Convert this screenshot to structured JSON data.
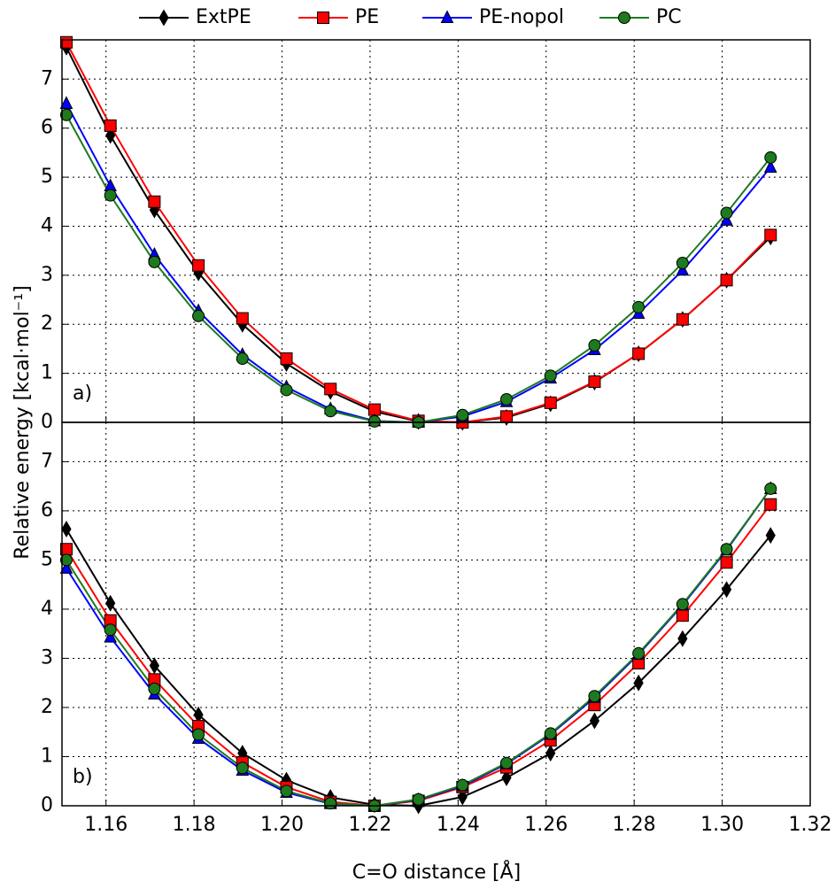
{
  "chart_data": [
    {
      "type": "line",
      "panel_label": "a)",
      "ylabel": "Relative energy [kcal·mol⁻¹]",
      "x": [
        1.151,
        1.161,
        1.171,
        1.181,
        1.191,
        1.201,
        1.211,
        1.221,
        1.231,
        1.241,
        1.251,
        1.261,
        1.271,
        1.281,
        1.291,
        1.301,
        1.311
      ],
      "xlim": [
        1.15,
        1.32
      ],
      "xticks": [
        1.16,
        1.18,
        1.2,
        1.22,
        1.24,
        1.26,
        1.28,
        1.3,
        1.32
      ],
      "ylim": [
        0,
        7.8
      ],
      "yticks": [
        0,
        1,
        2,
        3,
        4,
        5,
        6,
        7
      ],
      "grid": true,
      "series": [
        {
          "name": "ExtPE",
          "color": "#000000",
          "marker": "diamond",
          "values": [
            7.65,
            5.85,
            4.33,
            3.05,
            2.0,
            1.2,
            0.63,
            0.22,
            0.02,
            0.0,
            0.1,
            0.38,
            0.82,
            1.4,
            2.1,
            2.9,
            3.78
          ]
        },
        {
          "name": "PE",
          "color": "#ff0000",
          "marker": "square",
          "values": [
            7.75,
            6.05,
            4.5,
            3.2,
            2.12,
            1.3,
            0.68,
            0.26,
            0.03,
            0.0,
            0.12,
            0.4,
            0.83,
            1.4,
            2.1,
            2.9,
            3.82
          ]
        },
        {
          "name": "PE-nopol",
          "color": "#0000ff",
          "marker": "triangle",
          "values": [
            6.5,
            4.82,
            3.42,
            2.27,
            1.38,
            0.72,
            0.27,
            0.03,
            0.0,
            0.12,
            0.42,
            0.9,
            1.48,
            2.22,
            3.1,
            4.12,
            5.2
          ]
        },
        {
          "name": "PC",
          "color": "#1e7a1e",
          "marker": "circle",
          "values": [
            6.27,
            4.63,
            3.27,
            2.17,
            1.3,
            0.66,
            0.23,
            0.02,
            0.0,
            0.15,
            0.47,
            0.95,
            1.57,
            2.35,
            3.25,
            4.27,
            5.4
          ]
        }
      ]
    },
    {
      "type": "line",
      "panel_label": "b)",
      "xlabel": "C=O distance [Å]",
      "x": [
        1.151,
        1.161,
        1.171,
        1.181,
        1.191,
        1.201,
        1.211,
        1.221,
        1.231,
        1.241,
        1.251,
        1.261,
        1.271,
        1.281,
        1.291,
        1.301,
        1.311
      ],
      "xlim": [
        1.15,
        1.32
      ],
      "xticks": [
        1.16,
        1.18,
        {
          "value": 1.2,
          "label": "1.20"
        },
        1.22,
        1.24,
        1.26,
        1.28,
        {
          "value": 1.3,
          "label": "1.30"
        },
        1.32
      ],
      "ylim": [
        0,
        7.8
      ],
      "yticks": [
        0,
        1,
        2,
        3,
        4,
        5,
        6,
        7
      ],
      "grid": true,
      "series": [
        {
          "color": "#000000",
          "marker": "diamond",
          "values": [
            5.63,
            4.12,
            2.85,
            1.85,
            1.07,
            0.52,
            0.17,
            0.02,
            0.0,
            0.18,
            0.57,
            1.07,
            1.73,
            2.5,
            3.4,
            4.4,
            5.5
          ]
        },
        {
          "color": "#ff0000",
          "marker": "square",
          "values": [
            5.22,
            3.77,
            2.57,
            1.62,
            0.88,
            0.38,
            0.08,
            0.0,
            0.1,
            0.38,
            0.78,
            1.33,
            2.05,
            2.9,
            3.87,
            4.95,
            6.13
          ]
        },
        {
          "color": "#0000ff",
          "marker": "triangle",
          "values": [
            4.83,
            3.43,
            2.27,
            1.37,
            0.72,
            0.27,
            0.04,
            0.0,
            0.12,
            0.4,
            0.85,
            1.45,
            2.2,
            3.08,
            4.08,
            5.2,
            6.45
          ]
        },
        {
          "color": "#1e7a1e",
          "marker": "circle",
          "values": [
            5.0,
            3.58,
            2.38,
            1.45,
            0.77,
            0.3,
            0.05,
            0.0,
            0.13,
            0.42,
            0.87,
            1.47,
            2.23,
            3.1,
            4.1,
            5.22,
            6.45
          ]
        }
      ]
    }
  ]
}
